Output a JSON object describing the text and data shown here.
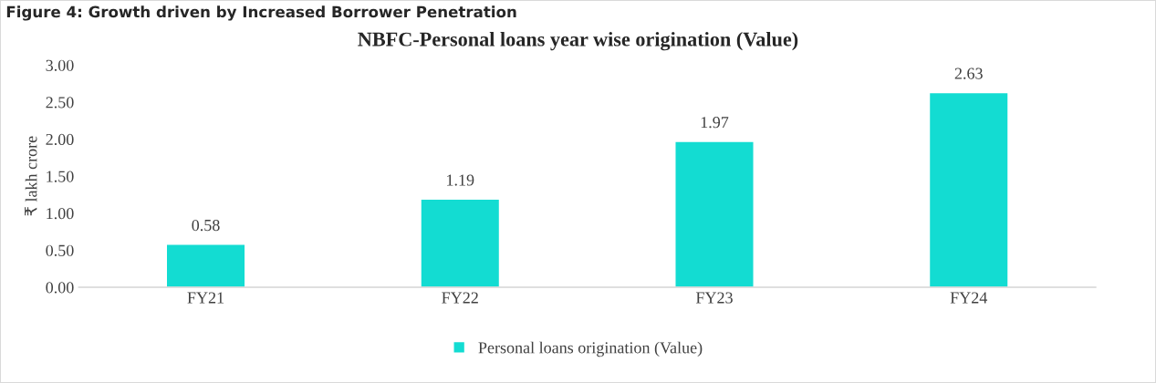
{
  "chart_data": {
    "type": "bar",
    "title": "NBFC-Personal loans year wise origination (Value)",
    "ylabel": "₹ lakh crore",
    "annotations": [
      "Figure 4: Growth driven by Increased Borrower Penetration"
    ],
    "categories": [
      "FY21",
      "FY22",
      "FY23",
      "FY24"
    ],
    "series": [
      {
        "name": "Personal loans origination (Value)",
        "color": "#13dcd2",
        "values": [
          0.58,
          1.19,
          1.97,
          2.63
        ]
      }
    ],
    "value_labels": [
      "0.58",
      "1.19",
      "1.97",
      "2.63"
    ],
    "ylim": [
      0,
      3
    ],
    "yticks": [
      {
        "value": 0,
        "label": "0.00"
      },
      {
        "value": 0.5,
        "label": "0.50"
      },
      {
        "value": 1,
        "label": "1.00"
      },
      {
        "value": 1.5,
        "label": "1.50"
      },
      {
        "value": 2,
        "label": "2.00"
      },
      {
        "value": 2.5,
        "label": "2.50"
      },
      {
        "value": 3,
        "label": "3.00"
      }
    ],
    "grid": false,
    "legend": "bottom"
  }
}
